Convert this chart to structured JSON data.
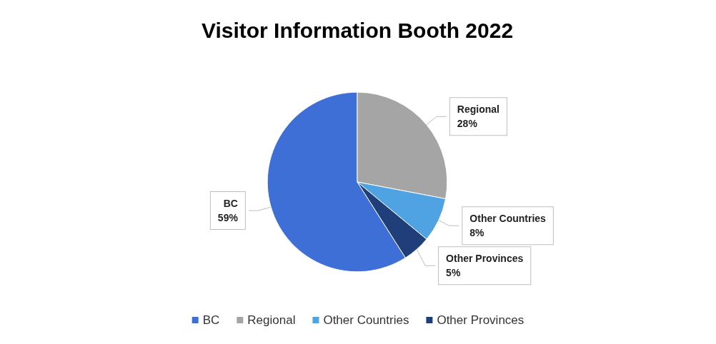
{
  "chart_data": {
    "type": "pie",
    "title": "Visitor Information Booth 2022",
    "categories": [
      "BC",
      "Regional",
      "Other Countries",
      "Other Provinces"
    ],
    "values": [
      59,
      28,
      8,
      5
    ],
    "colors": [
      "#3d6fd6",
      "#a5a5a5",
      "#4fa3e3",
      "#203f7a"
    ],
    "value_labels": [
      "59%",
      "28%",
      "8%",
      "5%"
    ],
    "legend": "bottom"
  }
}
